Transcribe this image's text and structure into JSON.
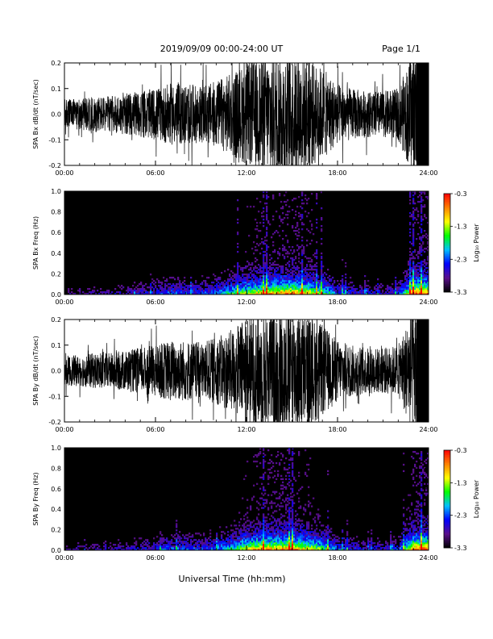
{
  "header": {
    "title": "2019/09/09  00:00-24:00 UT",
    "page": "Page 1/1"
  },
  "footer": {
    "xlabel": "Universal Time (hh:mm)"
  },
  "colorbar": {
    "label": "Log₁₀ Power",
    "ticks": [
      "-0.3",
      "-1.3",
      "-2.3",
      "-3.3"
    ],
    "range": [
      -3.3,
      -0.3
    ],
    "colors": [
      "#000000",
      "#5a0f8c",
      "#0000ff",
      "#00bfff",
      "#00ff00",
      "#ffff00",
      "#ff8000",
      "#ff0000"
    ]
  },
  "chart_data": [
    {
      "type": "line",
      "ylabel": "SPA Bx dB/dt (nT/sec)",
      "xlim": [
        0,
        24
      ],
      "ylim": [
        -0.2,
        0.2
      ],
      "xticks": [
        "00:00",
        "06:00",
        "12:00",
        "18:00",
        "24:00"
      ],
      "yticks": [
        "0.2",
        "0.1",
        "0.0",
        "-0.1",
        "-0.2"
      ],
      "amplitude_envelope": {
        "hours": [
          0,
          1,
          2,
          3,
          4,
          5,
          6,
          7,
          8,
          9,
          10,
          11,
          12,
          13,
          14,
          15,
          16,
          17,
          18,
          19,
          20,
          21,
          22,
          23,
          24
        ],
        "amplitude": [
          0.06,
          0.06,
          0.07,
          0.07,
          0.08,
          0.09,
          0.1,
          0.12,
          0.12,
          0.11,
          0.13,
          0.16,
          0.2,
          0.22,
          0.24,
          0.24,
          0.22,
          0.18,
          0.12,
          0.1,
          0.09,
          0.09,
          0.1,
          0.25,
          0.25
        ]
      }
    },
    {
      "type": "heatmap",
      "ylabel": "SPA Bx Freq (Hz)",
      "xlim": [
        0,
        24
      ],
      "ylim": [
        0.0,
        1.0
      ],
      "xticks": [
        "00:00",
        "06:00",
        "12:00",
        "18:00",
        "24:00"
      ],
      "yticks": [
        "1.0",
        "0.8",
        "0.6",
        "0.4",
        "0.2",
        "0.0"
      ],
      "value_label": "Log₁₀ Power",
      "zlim": [
        -3.3,
        -0.3
      ]
    },
    {
      "type": "line",
      "ylabel": "SPA By dB/dt (nT/sec)",
      "xlim": [
        0,
        24
      ],
      "ylim": [
        -0.2,
        0.2
      ],
      "xticks": [
        "00:00",
        "06:00",
        "12:00",
        "18:00",
        "24:00"
      ],
      "yticks": [
        "0.2",
        "0.1",
        "0.0",
        "-0.1",
        "-0.2"
      ],
      "amplitude_envelope": {
        "hours": [
          0,
          1,
          2,
          3,
          4,
          5,
          6,
          7,
          8,
          9,
          10,
          11,
          12,
          13,
          14,
          15,
          16,
          17,
          18,
          19,
          20,
          21,
          22,
          23,
          24
        ],
        "amplitude": [
          0.06,
          0.06,
          0.07,
          0.07,
          0.08,
          0.09,
          0.1,
          0.12,
          0.12,
          0.11,
          0.13,
          0.16,
          0.21,
          0.23,
          0.24,
          0.24,
          0.22,
          0.18,
          0.12,
          0.1,
          0.09,
          0.09,
          0.1,
          0.25,
          0.25
        ]
      }
    },
    {
      "type": "heatmap",
      "ylabel": "SPA By Freq (Hz)",
      "xlim": [
        0,
        24
      ],
      "ylim": [
        0.0,
        1.0
      ],
      "xticks": [
        "00:00",
        "06:00",
        "12:00",
        "18:00",
        "24:00"
      ],
      "yticks": [
        "1.0",
        "0.8",
        "0.6",
        "0.4",
        "0.2",
        "0.0"
      ],
      "value_label": "Log₁₀ Power",
      "zlim": [
        -3.3,
        -0.3
      ]
    }
  ]
}
